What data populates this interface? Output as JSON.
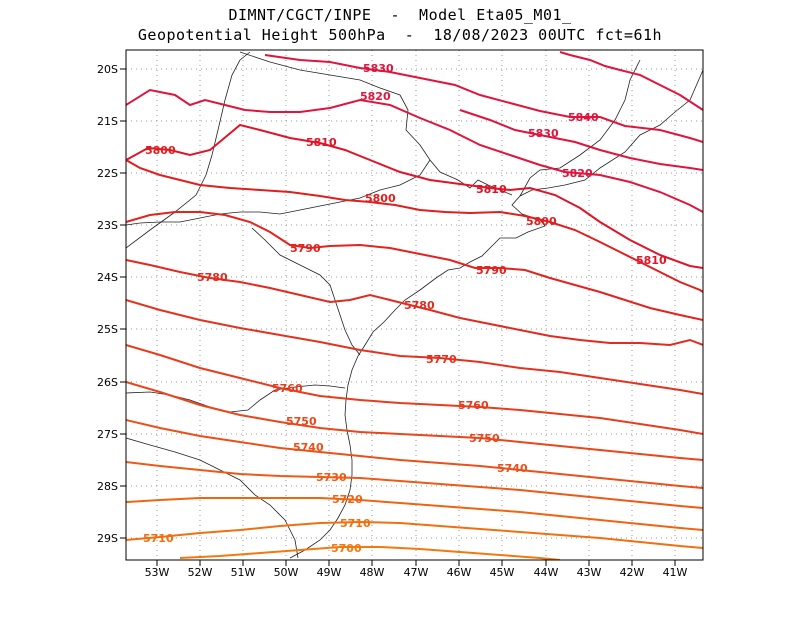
{
  "title": {
    "line1": "DIMNT/CGCT/INPE  -  Model Eta05_M01_",
    "line2": "Geopotential Height 500hPa  -  18/08/2023 00UTC fct=61h"
  },
  "axes": {
    "lat_labels": [
      "20S",
      "21S",
      "22S",
      "23S",
      "24S",
      "25S",
      "26S",
      "27S",
      "28S",
      "29S"
    ],
    "lon_labels": [
      "53W",
      "52W",
      "51W",
      "50W",
      "49W",
      "48W",
      "47W",
      "46W",
      "45W",
      "44W",
      "43W",
      "42W",
      "41W"
    ]
  },
  "contours": [
    {
      "value": "5840",
      "color": "#e0143c",
      "label": "5840"
    },
    {
      "value": "5830",
      "color": "#e0143c",
      "label": "5830"
    },
    {
      "value": "5820",
      "color": "#e0143c",
      "label": "5820"
    },
    {
      "value": "5810",
      "color": "#e01428",
      "label": "5810"
    },
    {
      "value": "5800",
      "color": "#e01e1e",
      "label": "5800"
    },
    {
      "value": "5790",
      "color": "#e2231e",
      "label": "5790"
    },
    {
      "value": "5780",
      "color": "#e32a1e",
      "label": "5780"
    },
    {
      "value": "5770",
      "color": "#e5321e",
      "label": "5770"
    },
    {
      "value": "5760",
      "color": "#e83c1c",
      "label": "5760"
    },
    {
      "value": "5750",
      "color": "#ea461a",
      "label": "5750"
    },
    {
      "value": "5740",
      "color": "#ec5018",
      "label": "5740"
    },
    {
      "value": "5730",
      "color": "#ee5a14",
      "label": "5730"
    },
    {
      "value": "5720",
      "color": "#f06410",
      "label": "5720"
    },
    {
      "value": "5710",
      "color": "#f26e0e",
      "label": "5710"
    },
    {
      "value": "5700",
      "color": "#f4780c",
      "label": "5700"
    }
  ]
}
